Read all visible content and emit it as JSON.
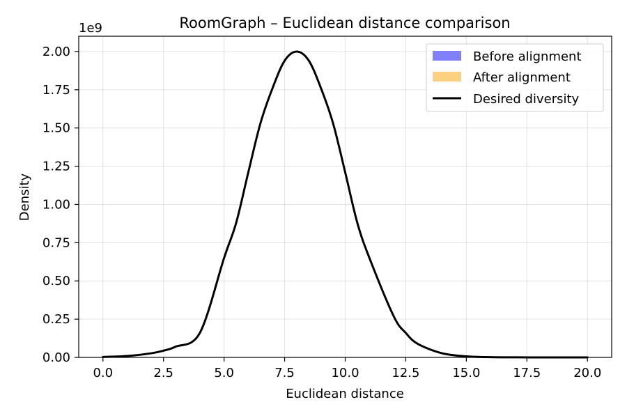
{
  "chart_data": {
    "type": "line",
    "title": "RoomGraph – Euclidean distance comparison",
    "xlabel": "Euclidean distance",
    "ylabel": "Density",
    "y_offset_label": "1e9",
    "xlim": [
      -1,
      21
    ],
    "ylim": [
      0,
      2.1
    ],
    "x_ticks": [
      0,
      2.5,
      5,
      7.5,
      10,
      12.5,
      15,
      17.5,
      20
    ],
    "x_tick_labels": [
      "0.0",
      "2.5",
      "5.0",
      "7.5",
      "10.0",
      "12.5",
      "15.0",
      "17.5",
      "20.0"
    ],
    "y_ticks": [
      0,
      0.25,
      0.5,
      0.75,
      1.0,
      1.25,
      1.5,
      1.75,
      2.0
    ],
    "y_tick_labels": [
      "0.00",
      "0.25",
      "0.50",
      "0.75",
      "1.00",
      "1.25",
      "1.50",
      "1.75",
      "2.00"
    ],
    "grid": true,
    "legend_position": "top-right",
    "legend": [
      {
        "label": "Before alignment",
        "kind": "patch",
        "color": "#8080ff"
      },
      {
        "label": "After alignment",
        "kind": "patch",
        "color": "#fbd080"
      },
      {
        "label": "Desired diversity",
        "kind": "line",
        "color": "#000000"
      }
    ],
    "series": [
      {
        "name": "Desired diversity",
        "color": "#000000",
        "x": [
          0,
          1,
          2,
          2.5,
          3,
          4,
          5,
          5.5,
          6,
          6.5,
          7,
          7.5,
          8,
          8.5,
          9,
          9.5,
          10,
          10.5,
          11,
          12,
          12.5,
          13,
          14,
          15,
          16,
          17,
          18,
          19,
          20
        ],
        "y": [
          0.003,
          0.009,
          0.027,
          0.044,
          0.07,
          0.16,
          0.65,
          0.88,
          1.21,
          1.53,
          1.76,
          1.94,
          2.0,
          1.94,
          1.76,
          1.53,
          1.21,
          0.88,
          0.65,
          0.27,
          0.16,
          0.088,
          0.027,
          0.007,
          0.0015,
          0.0003,
          0.0,
          0.0,
          0.0
        ]
      }
    ]
  }
}
